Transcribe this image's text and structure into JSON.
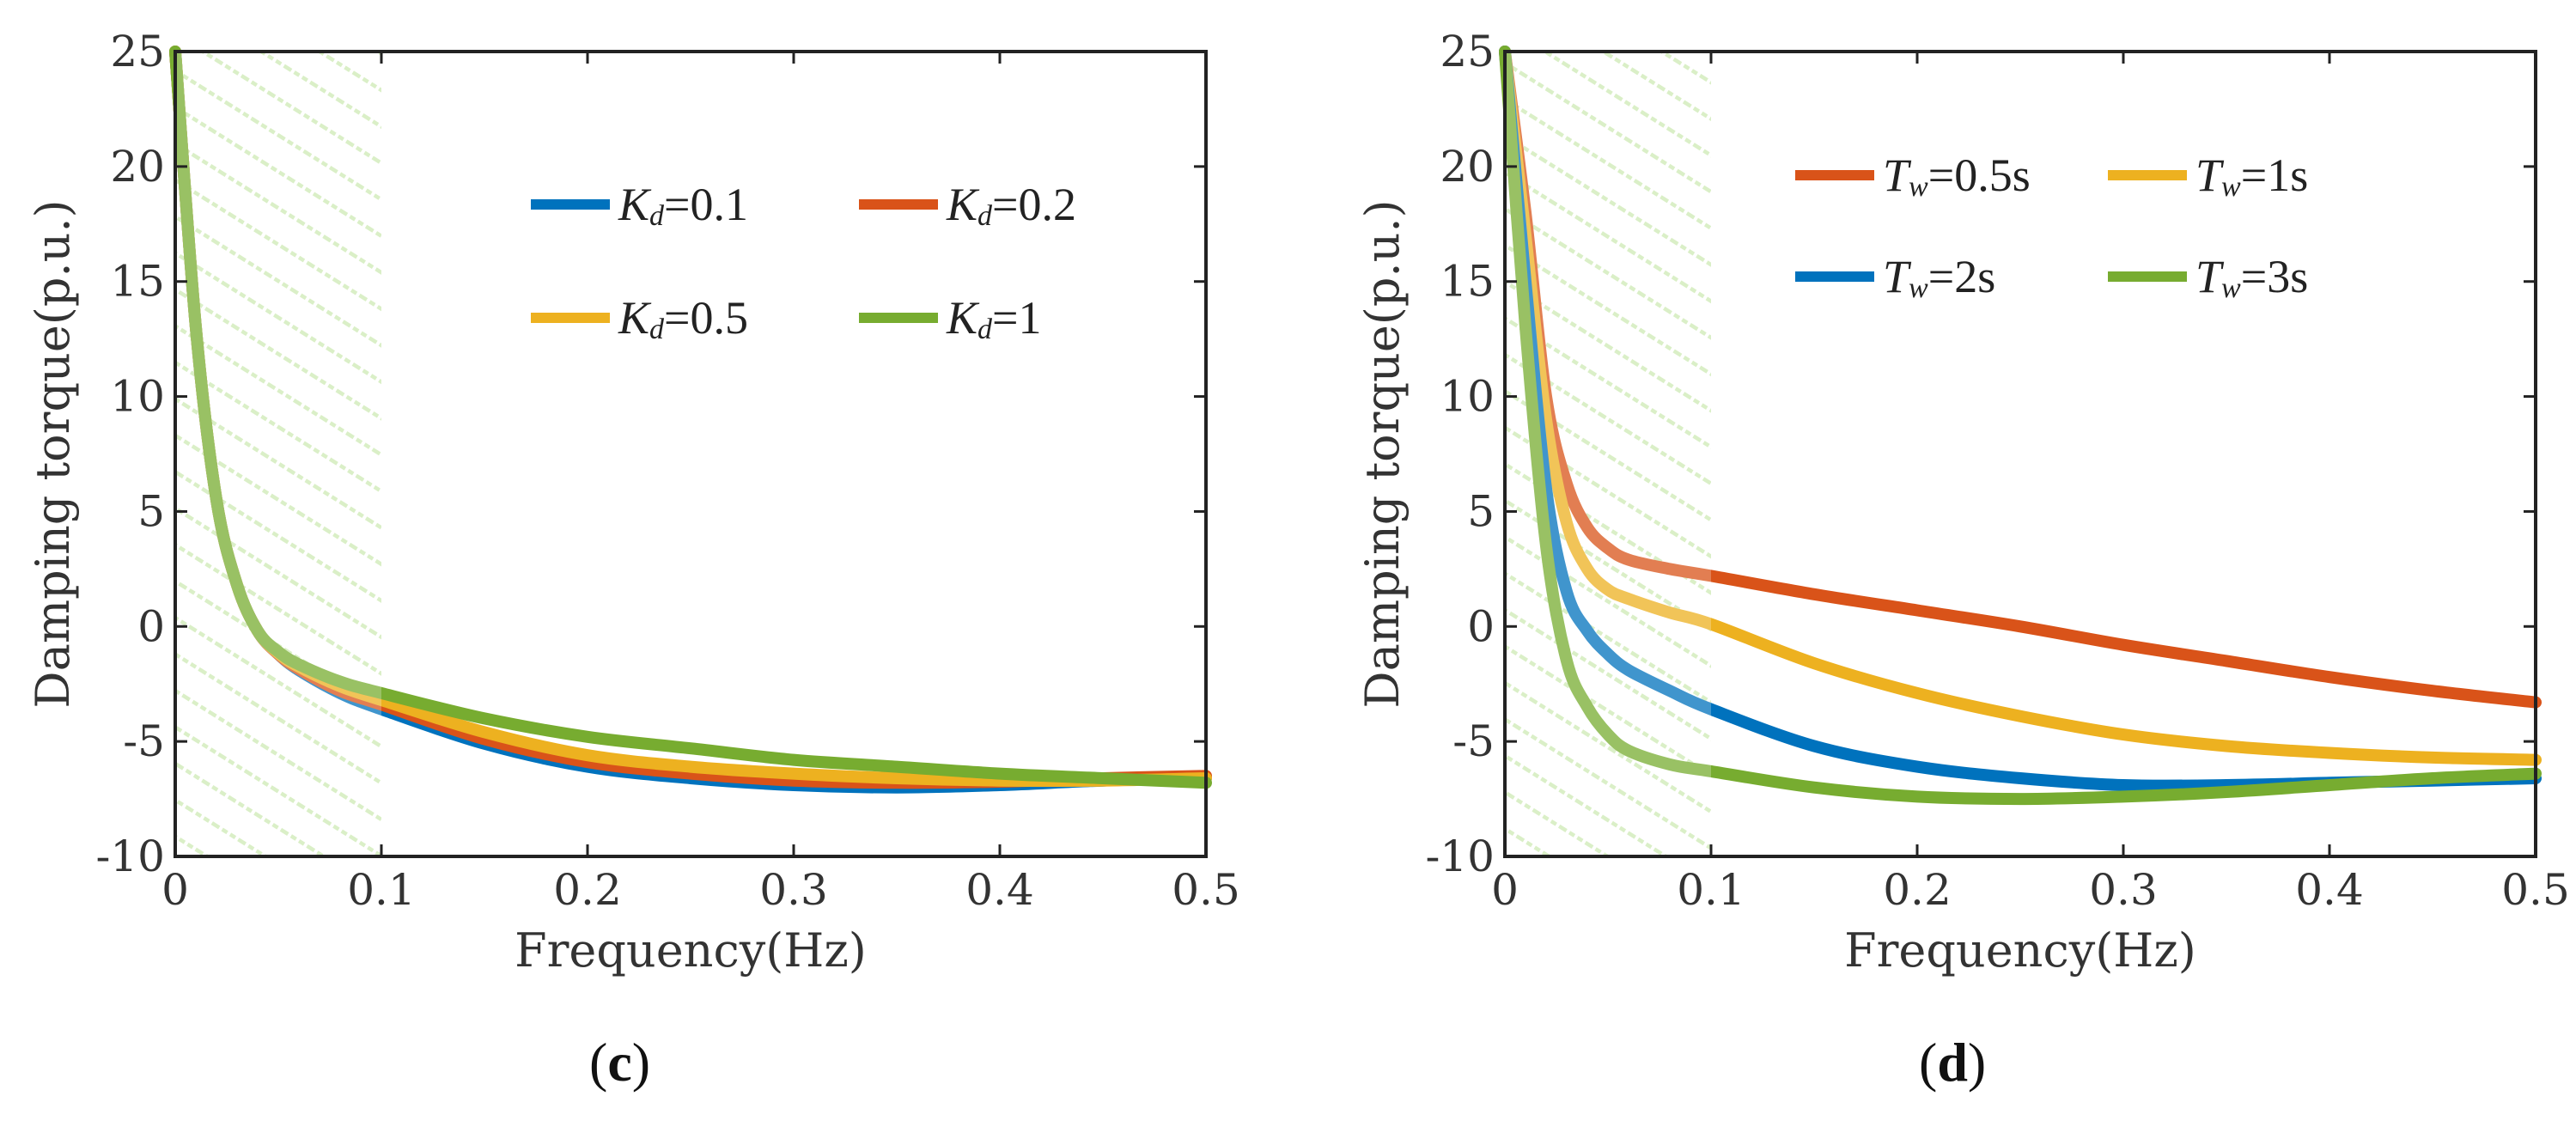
{
  "chart_data": [
    {
      "type": "line",
      "panel_label": "c",
      "xlabel": "Frequency(Hz)",
      "ylabel": "Damping torque(p.u.)",
      "xlim": [
        0,
        0.5
      ],
      "ylim": [
        -10,
        25
      ],
      "xticks": [
        0,
        0.1,
        0.2,
        0.3,
        0.4,
        0.5
      ],
      "xtick_labels": [
        "0",
        "0.1",
        "0.2",
        "0.3",
        "0.4",
        "0.5"
      ],
      "yticks": [
        -10,
        -5,
        0,
        5,
        10,
        15,
        20,
        25
      ],
      "ytick_labels": [
        "-10",
        "-5",
        "0",
        "5",
        "10",
        "15",
        "20",
        "25"
      ],
      "shaded_region": {
        "x": [
          0,
          0.1
        ],
        "pattern": "hatched",
        "color": "#9ed66a"
      },
      "legend_location": "upper-center",
      "series": [
        {
          "name": "Kd=0.1",
          "symbol": "K",
          "subscript": "d",
          "value": "=0.1",
          "color": "#0072bd",
          "x": [
            0,
            0.01,
            0.02,
            0.03,
            0.04,
            0.05,
            0.06,
            0.08,
            0.1,
            0.15,
            0.2,
            0.25,
            0.3,
            0.35,
            0.4,
            0.45,
            0.5
          ],
          "y": [
            25,
            13,
            5.5,
            1.8,
            -0.2,
            -1.2,
            -1.9,
            -2.9,
            -3.6,
            -5.1,
            -6.1,
            -6.6,
            -6.9,
            -7.0,
            -6.9,
            -6.7,
            -6.6
          ]
        },
        {
          "name": "Kd=0.2",
          "symbol": "K",
          "subscript": "d",
          "value": "=0.2",
          "color": "#d95319",
          "x": [
            0,
            0.01,
            0.02,
            0.03,
            0.04,
            0.05,
            0.06,
            0.08,
            0.1,
            0.15,
            0.2,
            0.25,
            0.3,
            0.35,
            0.4,
            0.45,
            0.5
          ],
          "y": [
            25,
            13,
            5.5,
            1.8,
            -0.2,
            -1.2,
            -1.85,
            -2.8,
            -3.4,
            -4.9,
            -5.9,
            -6.4,
            -6.7,
            -6.8,
            -6.75,
            -6.6,
            -6.5
          ]
        },
        {
          "name": "Kd=0.5",
          "symbol": "K",
          "subscript": "d",
          "value": "=0.5",
          "color": "#edb120",
          "x": [
            0,
            0.01,
            0.02,
            0.03,
            0.04,
            0.05,
            0.06,
            0.08,
            0.1,
            0.15,
            0.2,
            0.25,
            0.3,
            0.35,
            0.4,
            0.45,
            0.5
          ],
          "y": [
            25,
            13,
            5.5,
            1.8,
            -0.2,
            -1.15,
            -1.75,
            -2.6,
            -3.2,
            -4.6,
            -5.6,
            -6.1,
            -6.4,
            -6.6,
            -6.7,
            -6.7,
            -6.6
          ]
        },
        {
          "name": "Kd=1",
          "symbol": "K",
          "subscript": "d",
          "value": "=1",
          "color": "#77ac30",
          "x": [
            0,
            0.01,
            0.02,
            0.03,
            0.04,
            0.05,
            0.06,
            0.08,
            0.1,
            0.15,
            0.2,
            0.25,
            0.3,
            0.35,
            0.4,
            0.45,
            0.5
          ],
          "y": [
            25,
            13,
            5.5,
            1.8,
            -0.2,
            -1.1,
            -1.65,
            -2.4,
            -2.9,
            -4.0,
            -4.8,
            -5.3,
            -5.8,
            -6.1,
            -6.4,
            -6.6,
            -6.8
          ]
        }
      ]
    },
    {
      "type": "line",
      "panel_label": "d",
      "xlabel": "Frequency(Hz)",
      "ylabel": "Damping torque(p.u.)",
      "xlim": [
        0,
        0.5
      ],
      "ylim": [
        -10,
        25
      ],
      "xticks": [
        0,
        0.1,
        0.2,
        0.3,
        0.4,
        0.5
      ],
      "xtick_labels": [
        "0",
        "0.1",
        "0.2",
        "0.3",
        "0.4",
        "0.5"
      ],
      "yticks": [
        -10,
        -5,
        0,
        5,
        10,
        15,
        20,
        25
      ],
      "ytick_labels": [
        "-10",
        "-5",
        "0",
        "5",
        "10",
        "15",
        "20",
        "25"
      ],
      "shaded_region": {
        "x": [
          0,
          0.1
        ],
        "pattern": "hatched",
        "color": "#9ed66a"
      },
      "legend_location": "upper-center",
      "series": [
        {
          "name": "Tw=0.5s",
          "symbol": "T",
          "subscript": "w",
          "value": "=0.5s",
          "color": "#d95319",
          "x": [
            0,
            0.01,
            0.02,
            0.03,
            0.04,
            0.05,
            0.06,
            0.08,
            0.1,
            0.15,
            0.2,
            0.25,
            0.3,
            0.35,
            0.4,
            0.45,
            0.5
          ],
          "y": [
            25,
            18,
            10,
            6.2,
            4.3,
            3.4,
            2.9,
            2.5,
            2.2,
            1.4,
            0.7,
            0,
            -0.8,
            -1.5,
            -2.2,
            -2.8,
            -3.3
          ]
        },
        {
          "name": "Tw=1s",
          "symbol": "T",
          "subscript": "w",
          "value": "=1s",
          "color": "#edb120",
          "x": [
            0,
            0.01,
            0.02,
            0.03,
            0.04,
            0.05,
            0.06,
            0.08,
            0.1,
            0.15,
            0.2,
            0.25,
            0.3,
            0.35,
            0.4,
            0.45,
            0.5
          ],
          "y": [
            25,
            17,
            9,
            4.5,
            2.5,
            1.6,
            1.2,
            0.6,
            0.1,
            -1.6,
            -2.9,
            -3.9,
            -4.7,
            -5.2,
            -5.5,
            -5.7,
            -5.8
          ]
        },
        {
          "name": "Tw=2s",
          "symbol": "T",
          "subscript": "w",
          "value": "=2s",
          "color": "#0072bd",
          "x": [
            0,
            0.01,
            0.02,
            0.03,
            0.04,
            0.05,
            0.06,
            0.08,
            0.1,
            0.15,
            0.2,
            0.25,
            0.3,
            0.35,
            0.4,
            0.45,
            0.5
          ],
          "y": [
            25,
            15,
            6,
            1.5,
            -0.2,
            -1.2,
            -1.9,
            -2.8,
            -3.6,
            -5.2,
            -6.1,
            -6.6,
            -6.9,
            -6.9,
            -6.8,
            -6.7,
            -6.6
          ]
        },
        {
          "name": "Tw=3s",
          "symbol": "T",
          "subscript": "w",
          "value": "=3s",
          "color": "#77ac30",
          "x": [
            0,
            0.01,
            0.02,
            0.03,
            0.04,
            0.05,
            0.06,
            0.08,
            0.1,
            0.15,
            0.2,
            0.25,
            0.3,
            0.35,
            0.4,
            0.45,
            0.5
          ],
          "y": [
            25,
            13,
            3.5,
            -1.5,
            -3.5,
            -4.7,
            -5.4,
            -6.0,
            -6.3,
            -7.0,
            -7.4,
            -7.5,
            -7.4,
            -7.2,
            -6.9,
            -6.6,
            -6.4
          ]
        }
      ]
    }
  ]
}
